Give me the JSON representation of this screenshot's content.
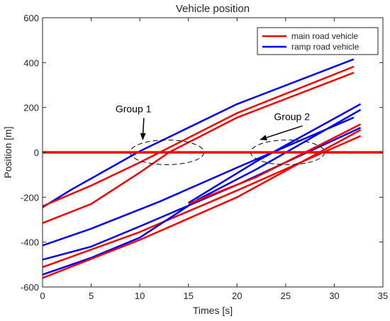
{
  "chart_data": {
    "type": "line",
    "title": "Vehicle position",
    "xlabel": "Times [s]",
    "ylabel": "Position [m]",
    "xlim": [
      0,
      35
    ],
    "ylim": [
      -600,
      600
    ],
    "xticks": [
      0,
      5,
      10,
      15,
      20,
      25,
      30,
      35
    ],
    "yticks": [
      -600,
      -400,
      -200,
      0,
      200,
      400,
      600
    ],
    "xtick_labels": [
      "0",
      "5",
      "10",
      "15",
      "20",
      "25",
      "30",
      "35"
    ],
    "ytick_labels": [
      "-600",
      "-400",
      "-200",
      "0",
      "200",
      "400",
      "600"
    ],
    "grid": false,
    "legend_position": "top-right",
    "legend": [
      {
        "label": "main road vehicle",
        "color": "#ff0000"
      },
      {
        "label": "ramp road vehicle",
        "color": "#0000ff"
      }
    ],
    "reference_line": {
      "y": 0,
      "color": "#ff0000"
    },
    "series": [
      {
        "color": "#0000ff",
        "points": [
          [
            0,
            -245
          ],
          [
            3,
            -165
          ],
          [
            10,
            5
          ],
          [
            20,
            215
          ],
          [
            32,
            415
          ]
        ]
      },
      {
        "color": "#ff0000",
        "points": [
          [
            0,
            -240
          ],
          [
            5,
            -148
          ],
          [
            10,
            -45
          ],
          [
            20,
            175
          ],
          [
            32,
            382
          ]
        ]
      },
      {
        "color": "#0000ff",
        "points": [
          [
            0,
            -415
          ],
          [
            5,
            -340
          ],
          [
            12,
            -220
          ],
          [
            20,
            -68
          ],
          [
            32,
            155
          ]
        ]
      },
      {
        "color": "#ff0000",
        "points": [
          [
            0,
            -315
          ],
          [
            5,
            -230
          ],
          [
            10,
            -90
          ],
          [
            13,
            0
          ],
          [
            20,
            155
          ],
          [
            32,
            355
          ]
        ]
      },
      {
        "color": "#0000ff",
        "points": [
          [
            0,
            -478
          ],
          [
            5,
            -420
          ],
          [
            10,
            -330
          ],
          [
            20,
            -145
          ],
          [
            32.7,
            110
          ]
        ]
      },
      {
        "color": "#ff0000",
        "points": [
          [
            0,
            -512
          ],
          [
            10,
            -355
          ],
          [
            20,
            -170
          ],
          [
            32.7,
            73
          ]
        ]
      },
      {
        "color": "#0000ff",
        "points": [
          [
            0,
            -545
          ],
          [
            5,
            -470
          ],
          [
            10,
            -380
          ],
          [
            16,
            -210
          ],
          [
            22,
            -75
          ],
          [
            32.7,
            190
          ]
        ]
      },
      {
        "color": "#ff0000",
        "points": [
          [
            0,
            -560
          ],
          [
            10,
            -390
          ],
          [
            20,
            -200
          ],
          [
            32.7,
            100
          ]
        ]
      },
      {
        "color": "#0000ff",
        "points": [
          [
            15,
            -225
          ],
          [
            22,
            -40
          ],
          [
            32.7,
            215
          ]
        ]
      },
      {
        "color": "#ff0000",
        "points": [
          [
            15,
            -230
          ],
          [
            22,
            -110
          ],
          [
            32.7,
            125
          ]
        ]
      }
    ],
    "annotations": [
      {
        "text": "Group 1",
        "ellipse_center": [
          12.8,
          0
        ],
        "ellipse_radius": [
          3.8,
          55
        ],
        "label_at": [
          7.5,
          178
        ],
        "arrow_to": [
          10.3,
          57
        ]
      },
      {
        "text": "Group 2",
        "ellipse_center": [
          25.2,
          0
        ],
        "ellipse_radius": [
          3.8,
          55
        ],
        "label_at": [
          23.8,
          143
        ],
        "arrow_to": [
          22.4,
          57
        ]
      }
    ]
  }
}
